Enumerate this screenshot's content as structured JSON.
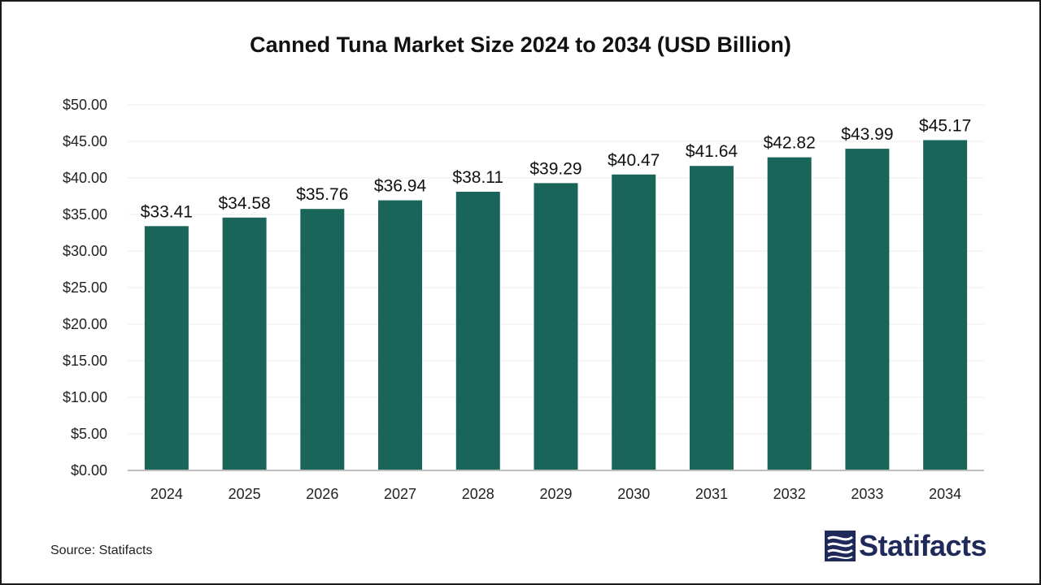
{
  "chart_data": {
    "type": "bar",
    "title": "Canned Tuna Market Size 2024 to 2034 (USD Billion)",
    "xlabel": "",
    "ylabel": "",
    "categories": [
      "2024",
      "2025",
      "2026",
      "2027",
      "2028",
      "2029",
      "2030",
      "2031",
      "2032",
      "2033",
      "2034"
    ],
    "values": [
      33.41,
      34.58,
      35.76,
      36.94,
      38.11,
      39.29,
      40.47,
      41.64,
      42.82,
      43.99,
      45.17
    ],
    "value_labels": [
      "$33.41",
      "$34.58",
      "$35.76",
      "$36.94",
      "$38.11",
      "$39.29",
      "$40.47",
      "$41.64",
      "$42.82",
      "$43.99",
      "$45.17"
    ],
    "ylim": [
      0,
      50
    ],
    "yticks": [
      0,
      5,
      10,
      15,
      20,
      25,
      30,
      35,
      40,
      45,
      50
    ],
    "ytick_labels": [
      "$0.00",
      "$5.00",
      "$10.00",
      "$15.00",
      "$20.00",
      "$25.00",
      "$30.00",
      "$35.00",
      "$40.00",
      "$45.00",
      "$50.00"
    ],
    "grid": true,
    "legend": "none",
    "bar_color": "#19655a"
  },
  "footer": {
    "source": "Source: Statifacts",
    "logo_text": "Statifacts"
  },
  "colors": {
    "logo": "#1f2a5a"
  }
}
